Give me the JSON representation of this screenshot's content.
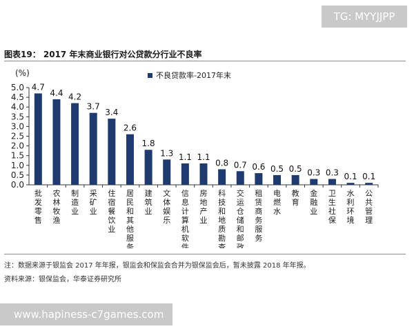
{
  "watermark_top": "TG: MYYJJPP",
  "watermark_bottom": "www.hapiness-c7games.com",
  "figure_title": "图表19：  2017 年末商业银行对公贷款分行业不良率",
  "note": "注：数据来源于银监会 2017 年年报，银监会和保监会合并为银保监会后，暂未披露 2018 年年报。",
  "source": "资料来源：银保监会，华泰证券研究所",
  "chart_data": {
    "type": "bar",
    "title": "",
    "ylabel": "(%)",
    "xlabel": "",
    "ylim": [
      0,
      5.0
    ],
    "yticks": [
      "0.0",
      "0.5",
      "1.0",
      "1.5",
      "2.0",
      "2.5",
      "3.0",
      "3.5",
      "4.0",
      "4.5",
      "5.0"
    ],
    "legend_position": "top-right",
    "grid": false,
    "bar_color": "#1f3a6e",
    "categories": [
      "批发零售",
      "农林牧渔",
      "制造业",
      "采矿业",
      "住宿餐饮业",
      "居民和其他服务",
      "建筑业",
      "文体娱乐",
      "信息计算机软件",
      "房地产业",
      "科技和地质勘查",
      "交运仓储和邮政",
      "租赁商务服务",
      "电燃水",
      "教育",
      "金融业",
      "卫生社保",
      "水利环境",
      "公共管理"
    ],
    "series": [
      {
        "name": "不良贷款率-2017年末",
        "values": [
          4.7,
          4.4,
          4.2,
          3.7,
          3.4,
          2.6,
          1.8,
          1.3,
          1.1,
          1.1,
          0.8,
          0.7,
          0.6,
          0.5,
          0.5,
          0.3,
          0.3,
          0.1,
          0.1
        ],
        "labels": [
          "4.7",
          "4.4",
          "4.2",
          "3.7",
          "3.4",
          "2.6",
          "1.8",
          "1.3",
          "1.1",
          "1.1",
          "0.8",
          "0.7",
          "0.6",
          "0.5",
          "0.5",
          "0.3",
          "0.3",
          "0.1",
          "0.1"
        ]
      }
    ]
  }
}
